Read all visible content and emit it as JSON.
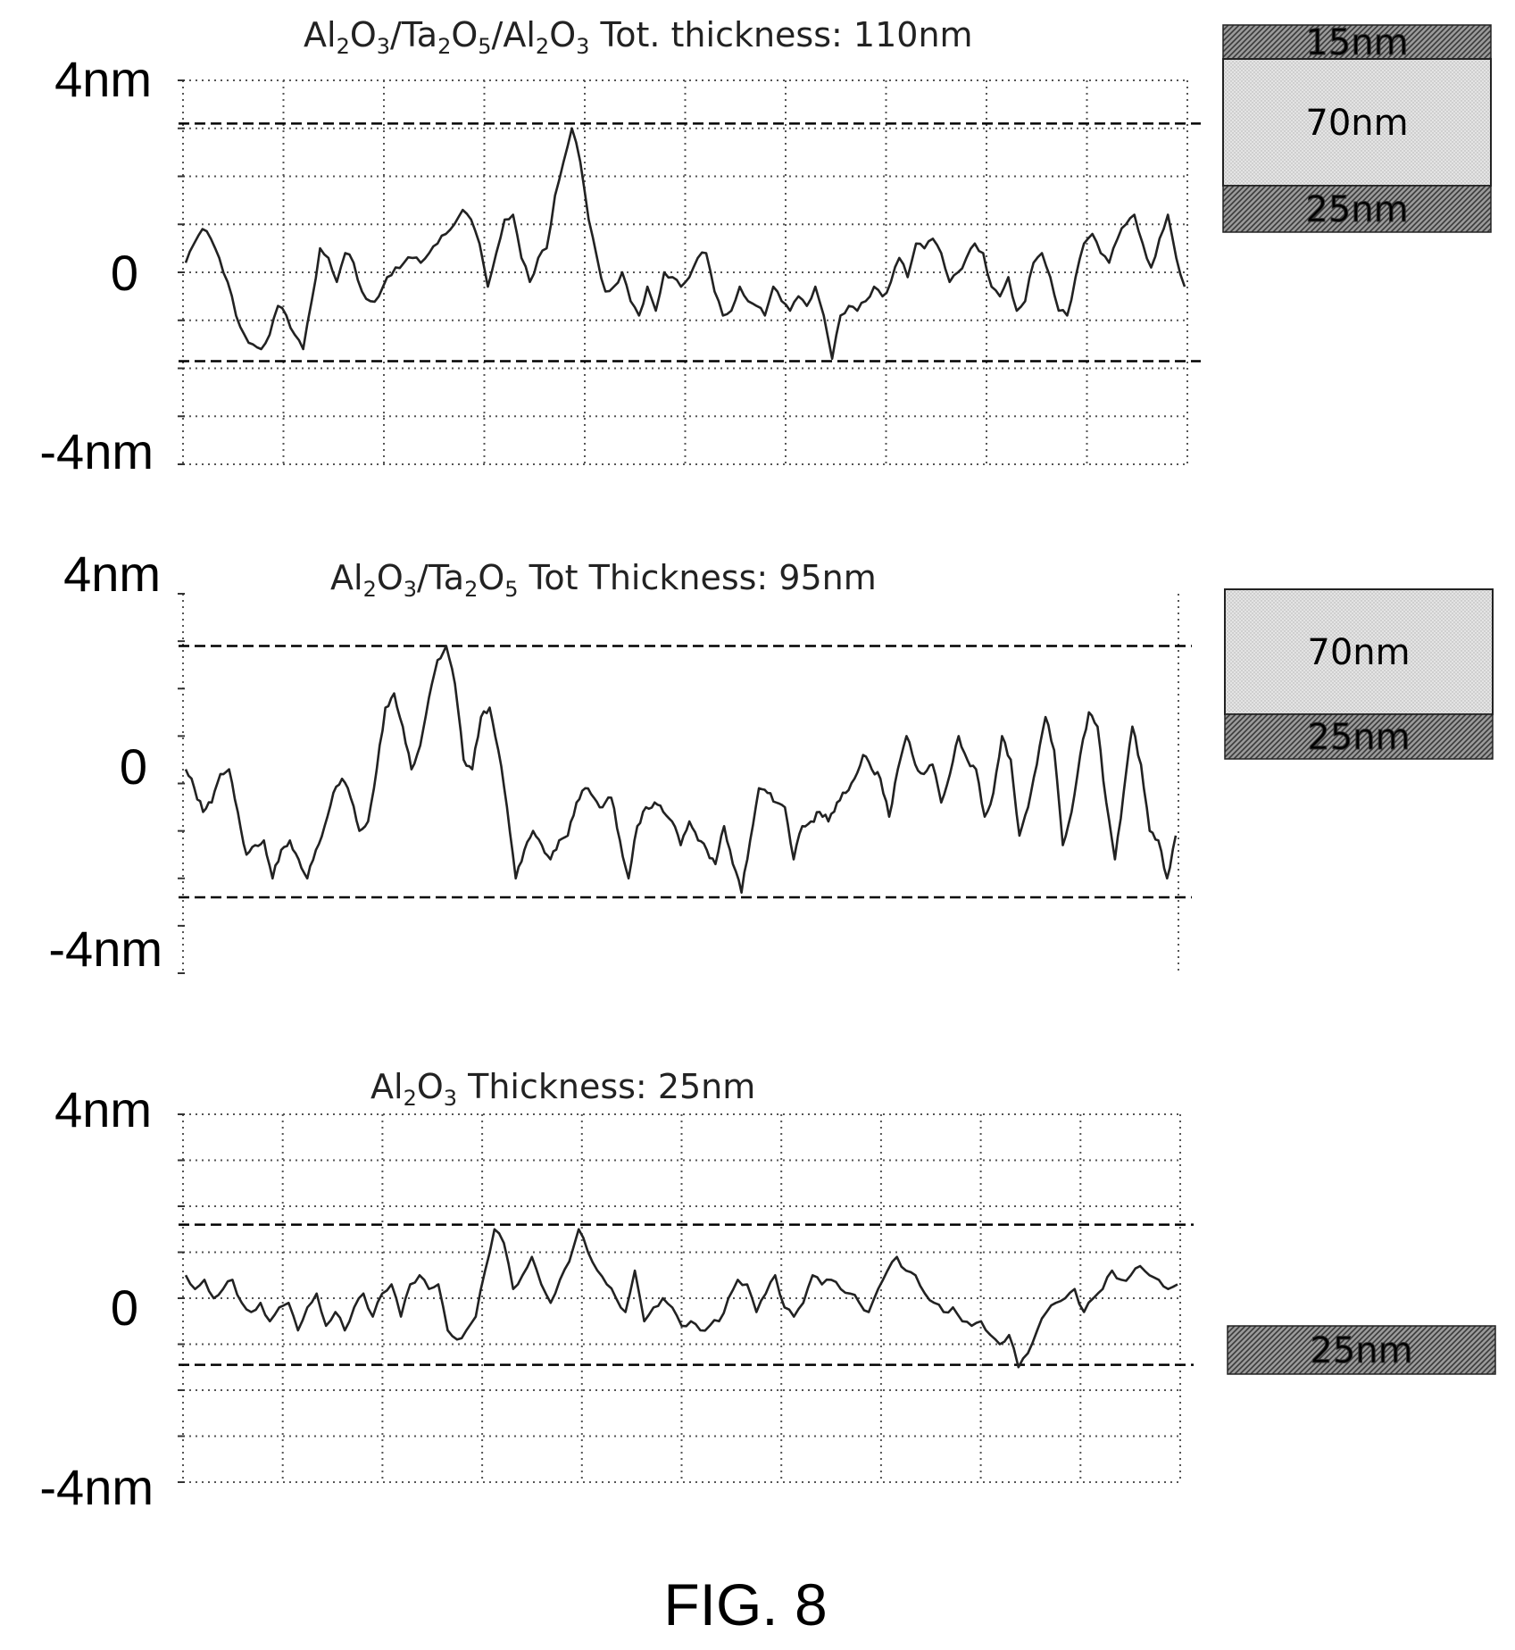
{
  "figure_label": "FIG. 8",
  "chart_data": [
    {
      "type": "line",
      "title_parts": [
        [
          "Al",
          ""
        ],
        [
          "2",
          "sub"
        ],
        [
          "O",
          ""
        ],
        [
          "3",
          "sub"
        ],
        [
          "/Ta",
          ""
        ],
        [
          "2",
          "sub"
        ],
        [
          "O",
          ""
        ],
        [
          "5",
          "sub"
        ],
        [
          "/Al",
          ""
        ],
        [
          "2",
          "sub"
        ],
        [
          "O",
          ""
        ],
        [
          "3",
          "sub"
        ],
        [
          " Tot. thickness: 110nm",
          ""
        ]
      ],
      "ylim": [
        -4,
        4
      ],
      "y_tick_labels": {
        "top": "4nm",
        "zero": "0",
        "bottom": "-4nm"
      },
      "grid": true,
      "bounds": [
        3.1,
        -1.85
      ],
      "series": [
        {
          "values": [
            0.2,
            0.6,
            0.9,
            0.7,
            0.3,
            -0.2,
            -0.9,
            -1.3,
            -1.5,
            -1.6,
            -1.3,
            -0.7,
            -0.9,
            -1.3,
            -1.6,
            -0.6,
            0.5,
            0.3,
            -0.2,
            0.4,
            0.2,
            -0.4,
            -0.6,
            -0.5,
            -0.1,
            0.1,
            0.2,
            0.3,
            0.2,
            0.4,
            0.6,
            0.8,
            1.0,
            1.3,
            1.1,
            0.6,
            -0.3,
            0.4,
            1.1,
            1.2,
            0.3,
            -0.2,
            0.3,
            0.5,
            1.6,
            2.3,
            3.0,
            2.3,
            1.1,
            0.3,
            -0.4,
            -0.3,
            0.0,
            -0.6,
            -0.9,
            -0.3,
            -0.8,
            0.0,
            -0.1,
            -0.3,
            -0.1,
            0.3,
            0.4,
            -0.4,
            -0.9,
            -0.8,
            -0.3,
            -0.6,
            -0.7,
            -0.9,
            -0.3,
            -0.6,
            -0.8,
            -0.5,
            -0.7,
            -0.3,
            -0.9,
            -1.8,
            -0.9,
            -0.7,
            -0.8,
            -0.6,
            -0.3,
            -0.5,
            -0.2,
            0.3,
            -0.1,
            0.6,
            0.5,
            0.7,
            0.4,
            -0.2,
            0.0,
            0.3,
            0.6,
            0.4,
            -0.3,
            -0.5,
            -0.1,
            -0.8,
            -0.6,
            0.2,
            0.4,
            -0.1,
            -0.8,
            -0.9,
            -0.1,
            0.6,
            0.8,
            0.4,
            0.2,
            0.7,
            1.0,
            1.2,
            0.6,
            0.1,
            0.7,
            1.2,
            0.3,
            -0.3
          ],
          "smoothing": 2
        }
      ],
      "layers": [
        {
          "label": "15nm",
          "style": "hatch"
        },
        {
          "label": "70nm",
          "style": "light"
        },
        {
          "label": "25nm",
          "style": "hatch"
        }
      ]
    },
    {
      "type": "line",
      "title_parts": [
        [
          "Al",
          ""
        ],
        [
          "2",
          "sub"
        ],
        [
          "O",
          ""
        ],
        [
          "3",
          "sub"
        ],
        [
          "/Ta",
          ""
        ],
        [
          "2",
          "sub"
        ],
        [
          "O",
          ""
        ],
        [
          "5",
          "sub"
        ],
        [
          "     Tot Thickness: 95nm",
          ""
        ]
      ],
      "ylim": [
        -4,
        4
      ],
      "y_tick_labels": {
        "top": "4nm",
        "zero": "0",
        "bottom": "-4nm"
      },
      "grid": false,
      "bounds": [
        2.9,
        -2.4
      ],
      "series": [
        {
          "values": [
            0.3,
            -0.1,
            -0.6,
            -0.4,
            0.2,
            0.3,
            -0.6,
            -1.5,
            -1.3,
            -1.2,
            -2.0,
            -1.4,
            -1.2,
            -1.6,
            -2.0,
            -1.4,
            -0.9,
            -0.2,
            0.1,
            -0.3,
            -1.0,
            -0.8,
            0.3,
            1.6,
            1.9,
            1.2,
            0.3,
            0.8,
            1.8,
            2.6,
            2.9,
            2.1,
            0.5,
            0.3,
            1.4,
            1.6,
            0.7,
            -0.5,
            -2.0,
            -1.4,
            -1.0,
            -1.3,
            -1.6,
            -1.2,
            -1.1,
            -0.4,
            -0.1,
            -0.3,
            -0.5,
            -0.3,
            -1.2,
            -2.0,
            -0.9,
            -0.5,
            -0.4,
            -0.6,
            -0.8,
            -1.3,
            -0.8,
            -1.2,
            -1.4,
            -1.7,
            -0.9,
            -1.7,
            -2.3,
            -1.2,
            -0.1,
            -0.2,
            -0.4,
            -0.5,
            -1.6,
            -0.9,
            -0.8,
            -0.6,
            -0.8,
            -0.4,
            -0.2,
            0.1,
            0.6,
            0.3,
            0.1,
            -0.7,
            0.3,
            1.0,
            0.4,
            0.2,
            0.4,
            -0.4,
            0.2,
            1.0,
            0.5,
            0.3,
            -0.7,
            -0.2,
            1.0,
            0.5,
            -1.1,
            -0.5,
            0.4,
            1.4,
            0.7,
            -1.3,
            -0.6,
            0.6,
            1.5,
            1.2,
            -0.4,
            -1.6,
            -0.2,
            1.2,
            0.4,
            -1.0,
            -1.2,
            -2.0,
            -1.1
          ],
          "smoothing": 3
        }
      ],
      "layers": [
        {
          "label": "70nm",
          "style": "light"
        },
        {
          "label": "25nm",
          "style": "hatch"
        }
      ]
    },
    {
      "type": "line",
      "title_parts": [
        [
          "Al",
          ""
        ],
        [
          "2",
          "sub"
        ],
        [
          "O",
          ""
        ],
        [
          "3",
          "sub"
        ],
        [
          " Thickness: 25nm",
          ""
        ]
      ],
      "ylim": [
        -4,
        4
      ],
      "y_tick_labels": {
        "top": "4nm",
        "zero": "0",
        "bottom": "-4nm"
      },
      "grid": true,
      "bounds": [
        1.6,
        -1.45
      ],
      "series": [
        {
          "values": [
            0.5,
            0.2,
            0.4,
            0.0,
            0.2,
            0.4,
            -0.1,
            -0.3,
            -0.1,
            -0.5,
            -0.2,
            -0.1,
            -0.7,
            -0.2,
            0.1,
            -0.6,
            -0.3,
            -0.7,
            -0.2,
            0.1,
            -0.4,
            0.1,
            0.3,
            -0.4,
            0.3,
            0.5,
            0.2,
            0.3,
            -0.7,
            -0.9,
            -0.7,
            -0.4,
            0.6,
            1.5,
            1.2,
            0.2,
            0.5,
            0.9,
            0.3,
            -0.1,
            0.4,
            0.8,
            1.5,
            1.0,
            0.6,
            0.3,
            0.0,
            -0.3,
            0.6,
            -0.5,
            -0.2,
            0.0,
            -0.2,
            -0.6,
            -0.5,
            -0.7,
            -0.6,
            -0.5,
            0.0,
            0.4,
            0.3,
            -0.3,
            0.1,
            0.5,
            -0.2,
            -0.4,
            -0.1,
            0.5,
            0.3,
            0.4,
            0.2,
            0.1,
            -0.1,
            -0.3,
            0.2,
            0.6,
            0.9,
            0.6,
            0.5,
            0.1,
            -0.1,
            -0.3,
            -0.2,
            -0.5,
            -0.6,
            -0.5,
            -0.8,
            -1.0,
            -0.8,
            -1.5,
            -1.2,
            -0.7,
            -0.3,
            -0.1,
            0.0,
            0.2,
            -0.3,
            0.0,
            0.2,
            0.6,
            0.4,
            0.5,
            0.7,
            0.5,
            0.4,
            0.2,
            0.3
          ],
          "smoothing": 2
        }
      ],
      "layers": [
        {
          "label": "25nm",
          "style": "hatch"
        }
      ]
    }
  ]
}
